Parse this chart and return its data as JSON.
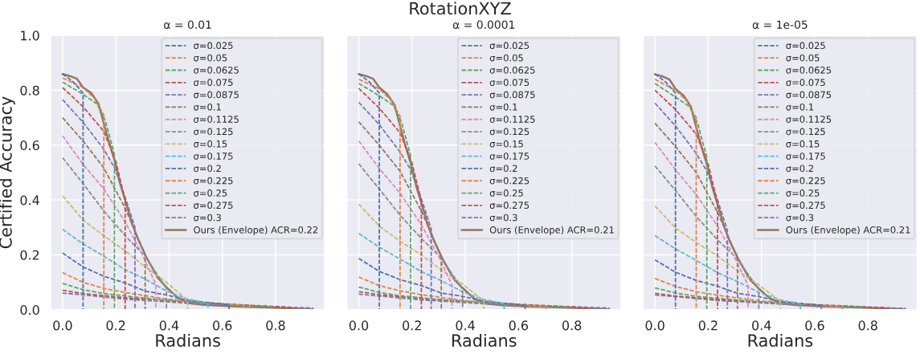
{
  "chart_data": [
    {
      "type": "line",
      "title": "α = 0.01",
      "xlabel": "Radians",
      "ylabel": "Certified Accuracy",
      "annotations": [
        "RotationXYZ"
      ],
      "xlim": [
        -0.045,
        0.985
      ],
      "ylim": [
        0,
        1.0
      ],
      "xticks": [
        {
          "value": 0,
          "label": "0.0"
        },
        {
          "value": 0.2,
          "label": "0.2"
        },
        {
          "value": 0.4,
          "label": "0.4"
        },
        {
          "value": 0.6,
          "label": "0.6"
        },
        {
          "value": 0.8,
          "label": "0.8"
        }
      ],
      "yticks": [
        {
          "value": 0,
          "label": "0.0"
        },
        {
          "value": 0.2,
          "label": "0.2"
        },
        {
          "value": 0.4,
          "label": "0.4"
        },
        {
          "value": 0.6,
          "label": "0.6"
        },
        {
          "value": 0.8,
          "label": "0.8"
        },
        {
          "value": 1.0,
          "label": "1.0"
        }
      ],
      "grid": true,
      "legend": "top right",
      "series": [
        {
          "name": "σ=0.025",
          "color": "#4c72b0",
          "line_style": "dashed",
          "x": [
            0,
            0.04,
            0.077,
            0.077
          ],
          "values": [
            0.86,
            0.83,
            0.79,
            0
          ]
        },
        {
          "name": "σ=0.05",
          "color": "#dd8452",
          "line_style": "dashed",
          "x": [
            0,
            0.077,
            0.12,
            0.155,
            0.155
          ],
          "values": [
            0.845,
            0.81,
            0.77,
            0.71,
            0
          ]
        },
        {
          "name": "σ=0.0625",
          "color": "#55a868",
          "line_style": "dashed",
          "x": [
            0,
            0.077,
            0.13,
            0.16,
            0.195,
            0.195
          ],
          "values": [
            0.83,
            0.785,
            0.75,
            0.69,
            0.566,
            0
          ]
        },
        {
          "name": "σ=0.075",
          "color": "#c44e52",
          "line_style": "dashed",
          "x": [
            0,
            0.077,
            0.155,
            0.2,
            0.235,
            0.235
          ],
          "values": [
            0.81,
            0.74,
            0.65,
            0.54,
            0.4,
            0
          ]
        },
        {
          "name": "σ=0.0875",
          "color": "#8172b3",
          "line_style": "dashed",
          "x": [
            0,
            0.077,
            0.155,
            0.195,
            0.235,
            0.272,
            0.272
          ],
          "values": [
            0.766,
            0.683,
            0.585,
            0.517,
            0.41,
            0.3,
            0
          ]
        },
        {
          "name": "σ=0.1",
          "color": "#937860",
          "line_style": "dashed",
          "x": [
            0,
            0.077,
            0.155,
            0.235,
            0.31,
            0.31
          ],
          "values": [
            0.7,
            0.615,
            0.517,
            0.37,
            0.2,
            0
          ]
        },
        {
          "name": "σ=0.1125",
          "color": "#da8bc3",
          "line_style": "dashed",
          "x": [
            0,
            0.077,
            0.155,
            0.235,
            0.3,
            0.35,
            0.35
          ],
          "values": [
            0.634,
            0.53,
            0.44,
            0.32,
            0.2,
            0.093,
            0
          ]
        },
        {
          "name": "σ=0.125",
          "color": "#8c8c8c",
          "line_style": "dashed",
          "x": [
            0,
            0.077,
            0.155,
            0.235,
            0.31,
            0.39,
            0.39
          ],
          "values": [
            0.554,
            0.46,
            0.36,
            0.27,
            0.195,
            0.078,
            0
          ]
        },
        {
          "name": "σ=0.15",
          "color": "#ccb974",
          "line_style": "dashed",
          "x": [
            0,
            0.077,
            0.155,
            0.235,
            0.31,
            0.39,
            0.47,
            0.47
          ],
          "values": [
            0.415,
            0.327,
            0.27,
            0.215,
            0.156,
            0.1,
            0.034,
            0
          ]
        },
        {
          "name": "σ=0.175",
          "color": "#64b5cd",
          "line_style": "dashed",
          "x": [
            0,
            0.077,
            0.155,
            0.235,
            0.31,
            0.39,
            0.47,
            0.546,
            0.546
          ],
          "values": [
            0.293,
            0.24,
            0.195,
            0.146,
            0.112,
            0.068,
            0.039,
            0.024,
            0
          ]
        },
        {
          "name": "σ=0.2",
          "color": "#4c72b0",
          "line_style": "dashed",
          "x": [
            0,
            0.077,
            0.155,
            0.235,
            0.31,
            0.39,
            0.47,
            0.625,
            0.625
          ],
          "values": [
            0.207,
            0.156,
            0.122,
            0.098,
            0.068,
            0.054,
            0.034,
            0.018,
            0
          ]
        },
        {
          "name": "σ=0.225",
          "color": "#dd8452",
          "line_style": "dashed",
          "x": [
            0,
            0.077,
            0.155,
            0.235,
            0.39,
            0.703,
            0.703
          ],
          "values": [
            0.135,
            0.1,
            0.078,
            0.063,
            0.039,
            0.012,
            0
          ]
        },
        {
          "name": "σ=0.25",
          "color": "#55a868",
          "line_style": "dashed",
          "x": [
            0,
            0.077,
            0.155,
            0.39,
            0.784,
            0.784
          ],
          "values": [
            0.096,
            0.073,
            0.059,
            0.034,
            0.01,
            0
          ]
        },
        {
          "name": "σ=0.275",
          "color": "#c44e52",
          "line_style": "dashed",
          "x": [
            0,
            0.077,
            0.235,
            0.465,
            0.86,
            0.86
          ],
          "values": [
            0.071,
            0.059,
            0.044,
            0.029,
            0.008,
            0
          ]
        },
        {
          "name": "σ=0.3",
          "color": "#8172b3",
          "line_style": "dashed",
          "x": [
            0,
            0.077,
            0.235,
            0.465,
            0.94,
            0.94
          ],
          "values": [
            0.061,
            0.054,
            0.039,
            0.024,
            0.006,
            0
          ]
        },
        {
          "name": "Ours (Envelope) ACR=0.22",
          "color": "#937860",
          "line_style": "solid",
          "x": [
            0,
            0.027,
            0.054,
            0.077,
            0.108,
            0.135,
            0.151,
            0.173,
            0.195,
            0.216,
            0.238,
            0.259,
            0.281,
            0.313,
            0.357,
            0.389,
            0.432,
            0.476,
            0.53,
            0.627,
            0.789,
            0.94
          ],
          "values": [
            0.859,
            0.852,
            0.842,
            0.81,
            0.79,
            0.75,
            0.693,
            0.615,
            0.546,
            0.46,
            0.39,
            0.32,
            0.263,
            0.195,
            0.117,
            0.083,
            0.044,
            0.024,
            0.018,
            0.013,
            0.008,
            0.002
          ]
        }
      ]
    },
    {
      "type": "line",
      "title": "α = 0.0001",
      "xlabel": "Radians",
      "tick_labels": "x",
      "xlim": [
        -0.045,
        0.985
      ],
      "ylim": [
        0,
        1.0
      ],
      "xticks": [
        {
          "value": 0,
          "label": "0.0"
        },
        {
          "value": 0.2,
          "label": "0.2"
        },
        {
          "value": 0.4,
          "label": "0.4"
        },
        {
          "value": 0.6,
          "label": "0.6"
        },
        {
          "value": 0.8,
          "label": "0.8"
        }
      ],
      "yticks": [
        0,
        0.2,
        0.4,
        0.6,
        0.8,
        1.0
      ],
      "grid": true,
      "legend": "top right",
      "series": [
        {
          "name": "σ=0.025",
          "color": "#4c72b0",
          "line_style": "dashed",
          "x": [
            0,
            0.04,
            0.077,
            0.077
          ],
          "values": [
            0.86,
            0.83,
            0.79,
            0
          ]
        },
        {
          "name": "σ=0.05",
          "color": "#dd8452",
          "line_style": "dashed",
          "x": [
            0,
            0.077,
            0.12,
            0.155,
            0.155
          ],
          "values": [
            0.84,
            0.805,
            0.765,
            0.705,
            0
          ]
        },
        {
          "name": "σ=0.0625",
          "color": "#55a868",
          "line_style": "dashed",
          "x": [
            0,
            0.077,
            0.13,
            0.16,
            0.195,
            0.195
          ],
          "values": [
            0.825,
            0.78,
            0.745,
            0.685,
            0.56,
            0
          ]
        },
        {
          "name": "σ=0.075",
          "color": "#c44e52",
          "line_style": "dashed",
          "x": [
            0,
            0.077,
            0.155,
            0.2,
            0.235,
            0.235
          ],
          "values": [
            0.807,
            0.735,
            0.645,
            0.535,
            0.395,
            0
          ]
        },
        {
          "name": "σ=0.0875",
          "color": "#8172b3",
          "line_style": "dashed",
          "x": [
            0,
            0.077,
            0.155,
            0.195,
            0.235,
            0.272,
            0.272
          ],
          "values": [
            0.756,
            0.675,
            0.575,
            0.51,
            0.405,
            0.295,
            0
          ]
        },
        {
          "name": "σ=0.1",
          "color": "#937860",
          "line_style": "dashed",
          "x": [
            0,
            0.077,
            0.155,
            0.235,
            0.31,
            0.31
          ],
          "values": [
            0.685,
            0.6,
            0.505,
            0.36,
            0.195,
            0
          ]
        },
        {
          "name": "σ=0.1125",
          "color": "#da8bc3",
          "line_style": "dashed",
          "x": [
            0,
            0.077,
            0.155,
            0.235,
            0.3,
            0.35,
            0.35
          ],
          "values": [
            0.615,
            0.515,
            0.425,
            0.31,
            0.195,
            0.09,
            0
          ]
        },
        {
          "name": "σ=0.125",
          "color": "#8c8c8c",
          "line_style": "dashed",
          "x": [
            0,
            0.077,
            0.155,
            0.235,
            0.31,
            0.39,
            0.39
          ],
          "values": [
            0.532,
            0.44,
            0.345,
            0.26,
            0.187,
            0.075,
            0
          ]
        },
        {
          "name": "σ=0.15",
          "color": "#ccb974",
          "line_style": "dashed",
          "x": [
            0,
            0.077,
            0.155,
            0.235,
            0.31,
            0.39,
            0.47,
            0.47
          ],
          "values": [
            0.385,
            0.305,
            0.25,
            0.2,
            0.145,
            0.093,
            0.032,
            0
          ]
        },
        {
          "name": "σ=0.175",
          "color": "#64b5cd",
          "line_style": "dashed",
          "x": [
            0,
            0.077,
            0.155,
            0.235,
            0.31,
            0.39,
            0.47,
            0.546,
            0.546
          ],
          "values": [
            0.278,
            0.228,
            0.185,
            0.139,
            0.106,
            0.065,
            0.037,
            0.023,
            0
          ]
        },
        {
          "name": "σ=0.2",
          "color": "#4c72b0",
          "line_style": "dashed",
          "x": [
            0,
            0.077,
            0.155,
            0.235,
            0.31,
            0.39,
            0.47,
            0.625,
            0.625
          ],
          "values": [
            0.187,
            0.14,
            0.11,
            0.088,
            0.061,
            0.049,
            0.031,
            0.016,
            0
          ]
        },
        {
          "name": "σ=0.225",
          "color": "#dd8452",
          "line_style": "dashed",
          "x": [
            0,
            0.077,
            0.155,
            0.235,
            0.39,
            0.703,
            0.703
          ],
          "values": [
            0.119,
            0.088,
            0.069,
            0.055,
            0.034,
            0.011,
            0
          ]
        },
        {
          "name": "σ=0.25",
          "color": "#55a868",
          "line_style": "dashed",
          "x": [
            0,
            0.077,
            0.155,
            0.39,
            0.784,
            0.784
          ],
          "values": [
            0.083,
            0.063,
            0.051,
            0.029,
            0.009,
            0
          ]
        },
        {
          "name": "σ=0.275",
          "color": "#c44e52",
          "line_style": "dashed",
          "x": [
            0,
            0.077,
            0.235,
            0.465,
            0.86,
            0.86
          ],
          "values": [
            0.066,
            0.055,
            0.041,
            0.027,
            0.007,
            0
          ]
        },
        {
          "name": "σ=0.3",
          "color": "#8172b3",
          "line_style": "dashed",
          "x": [
            0,
            0.077,
            0.235,
            0.465,
            0.94,
            0.94
          ],
          "values": [
            0.057,
            0.05,
            0.036,
            0.022,
            0.006,
            0
          ]
        },
        {
          "name": "Ours (Envelope) ACR=0.21",
          "color": "#937860",
          "line_style": "solid",
          "x": [
            0,
            0.027,
            0.054,
            0.077,
            0.108,
            0.135,
            0.151,
            0.173,
            0.195,
            0.216,
            0.238,
            0.259,
            0.281,
            0.313,
            0.357,
            0.389,
            0.432,
            0.476,
            0.53,
            0.627,
            0.789,
            0.94
          ],
          "values": [
            0.859,
            0.852,
            0.842,
            0.81,
            0.785,
            0.745,
            0.685,
            0.605,
            0.535,
            0.45,
            0.38,
            0.31,
            0.255,
            0.188,
            0.112,
            0.08,
            0.042,
            0.023,
            0.017,
            0.012,
            0.008,
            0.002
          ]
        }
      ]
    },
    {
      "type": "line",
      "title": "α = 1e-05",
      "xlabel": "Radians",
      "tick_labels": "x",
      "xlim": [
        -0.045,
        0.985
      ],
      "ylim": [
        0,
        1.0
      ],
      "xticks": [
        {
          "value": 0,
          "label": "0.0"
        },
        {
          "value": 0.2,
          "label": "0.2"
        },
        {
          "value": 0.4,
          "label": "0.4"
        },
        {
          "value": 0.6,
          "label": "0.6"
        },
        {
          "value": 0.8,
          "label": "0.8"
        }
      ],
      "yticks": [
        0,
        0.2,
        0.4,
        0.6,
        0.8,
        1.0
      ],
      "grid": true,
      "legend": "top right",
      "series": [
        {
          "name": "σ=0.025",
          "color": "#4c72b0",
          "line_style": "dashed",
          "x": [
            0,
            0.04,
            0.077,
            0.077
          ],
          "values": [
            0.86,
            0.83,
            0.79,
            0
          ]
        },
        {
          "name": "σ=0.05",
          "color": "#dd8452",
          "line_style": "dashed",
          "x": [
            0,
            0.077,
            0.12,
            0.155,
            0.155
          ],
          "values": [
            0.84,
            0.8,
            0.76,
            0.7,
            0
          ]
        },
        {
          "name": "σ=0.0625",
          "color": "#55a868",
          "line_style": "dashed",
          "x": [
            0,
            0.077,
            0.13,
            0.16,
            0.195,
            0.195
          ],
          "values": [
            0.825,
            0.775,
            0.74,
            0.68,
            0.555,
            0
          ]
        },
        {
          "name": "σ=0.075",
          "color": "#c44e52",
          "line_style": "dashed",
          "x": [
            0,
            0.077,
            0.155,
            0.2,
            0.235,
            0.235
          ],
          "values": [
            0.8,
            0.73,
            0.64,
            0.53,
            0.39,
            0
          ]
        },
        {
          "name": "σ=0.0875",
          "color": "#8172b3",
          "line_style": "dashed",
          "x": [
            0,
            0.077,
            0.155,
            0.195,
            0.235,
            0.272,
            0.272
          ],
          "values": [
            0.753,
            0.67,
            0.57,
            0.505,
            0.4,
            0.29,
            0
          ]
        },
        {
          "name": "σ=0.1",
          "color": "#937860",
          "line_style": "dashed",
          "x": [
            0,
            0.077,
            0.155,
            0.235,
            0.31,
            0.31
          ],
          "values": [
            0.68,
            0.595,
            0.5,
            0.355,
            0.19,
            0
          ]
        },
        {
          "name": "σ=0.1125",
          "color": "#da8bc3",
          "line_style": "dashed",
          "x": [
            0,
            0.077,
            0.155,
            0.235,
            0.3,
            0.35,
            0.35
          ],
          "values": [
            0.61,
            0.51,
            0.42,
            0.305,
            0.19,
            0.088,
            0
          ]
        },
        {
          "name": "σ=0.125",
          "color": "#8c8c8c",
          "line_style": "dashed",
          "x": [
            0,
            0.077,
            0.155,
            0.235,
            0.31,
            0.39,
            0.39
          ],
          "values": [
            0.524,
            0.435,
            0.34,
            0.255,
            0.184,
            0.074,
            0
          ]
        },
        {
          "name": "σ=0.15",
          "color": "#ccb974",
          "line_style": "dashed",
          "x": [
            0,
            0.077,
            0.155,
            0.235,
            0.31,
            0.39,
            0.47,
            0.47
          ],
          "values": [
            0.378,
            0.298,
            0.245,
            0.196,
            0.142,
            0.091,
            0.031,
            0
          ]
        },
        {
          "name": "σ=0.175",
          "color": "#64b5cd",
          "line_style": "dashed",
          "x": [
            0,
            0.077,
            0.155,
            0.235,
            0.31,
            0.39,
            0.47,
            0.546,
            0.546
          ],
          "values": [
            0.27,
            0.222,
            0.18,
            0.135,
            0.103,
            0.063,
            0.036,
            0.022,
            0
          ]
        },
        {
          "name": "σ=0.2",
          "color": "#4c72b0",
          "line_style": "dashed",
          "x": [
            0,
            0.077,
            0.155,
            0.235,
            0.31,
            0.39,
            0.47,
            0.625,
            0.625
          ],
          "values": [
            0.182,
            0.137,
            0.107,
            0.086,
            0.06,
            0.048,
            0.03,
            0.016,
            0
          ]
        },
        {
          "name": "σ=0.225",
          "color": "#dd8452",
          "line_style": "dashed",
          "x": [
            0,
            0.077,
            0.155,
            0.235,
            0.39,
            0.703,
            0.703
          ],
          "values": [
            0.114,
            0.085,
            0.066,
            0.053,
            0.033,
            0.01,
            0
          ]
        },
        {
          "name": "σ=0.25",
          "color": "#55a868",
          "line_style": "dashed",
          "x": [
            0,
            0.077,
            0.155,
            0.39,
            0.784,
            0.784
          ],
          "values": [
            0.08,
            0.061,
            0.049,
            0.028,
            0.009,
            0
          ]
        },
        {
          "name": "σ=0.275",
          "color": "#c44e52",
          "line_style": "dashed",
          "x": [
            0,
            0.077,
            0.235,
            0.465,
            0.86,
            0.86
          ],
          "values": [
            0.06,
            0.05,
            0.037,
            0.025,
            0.007,
            0
          ]
        },
        {
          "name": "σ=0.3",
          "color": "#8172b3",
          "line_style": "dashed",
          "x": [
            0,
            0.077,
            0.235,
            0.465,
            0.94,
            0.94
          ],
          "values": [
            0.054,
            0.048,
            0.034,
            0.021,
            0.005,
            0
          ]
        },
        {
          "name": "Ours (Envelope) ACR=0.21",
          "color": "#937860",
          "line_style": "solid",
          "x": [
            0,
            0.027,
            0.054,
            0.077,
            0.108,
            0.135,
            0.151,
            0.173,
            0.195,
            0.216,
            0.238,
            0.259,
            0.281,
            0.313,
            0.357,
            0.389,
            0.432,
            0.476,
            0.53,
            0.627,
            0.789,
            0.94
          ],
          "values": [
            0.858,
            0.851,
            0.84,
            0.805,
            0.78,
            0.74,
            0.68,
            0.6,
            0.53,
            0.445,
            0.375,
            0.305,
            0.25,
            0.185,
            0.11,
            0.078,
            0.041,
            0.022,
            0.017,
            0.012,
            0.008,
            0.002
          ]
        }
      ]
    }
  ]
}
